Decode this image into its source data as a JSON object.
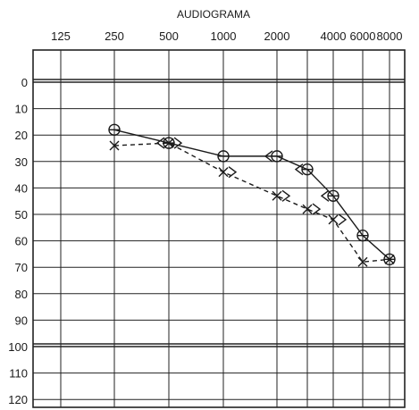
{
  "chart_data": {
    "type": "line",
    "title": "AUDIOGRAMA",
    "x": [
      125,
      250,
      500,
      1000,
      2000,
      4000,
      6000,
      8000
    ],
    "x_tick_labels": [
      "125",
      "250",
      "500",
      "1000",
      "2000",
      "4000",
      "6000",
      "8000"
    ],
    "y_tick_labels": [
      "0",
      "10",
      "20",
      "30",
      "40",
      "50",
      "60",
      "70",
      "80",
      "90",
      "100",
      "110",
      "120"
    ],
    "ylim": [
      -5,
      120
    ],
    "y_reversed": true,
    "grid": true,
    "series": [
      {
        "line_style": "solid",
        "air_marker": "O",
        "bone_marker": "<",
        "air": [
          [
            250,
            18
          ],
          [
            500,
            23
          ],
          [
            1000,
            28
          ],
          [
            2000,
            28
          ],
          [
            3000,
            33
          ],
          [
            4000,
            43
          ],
          [
            6000,
            58
          ],
          [
            8000,
            67
          ]
        ],
        "bone": [
          [
            500,
            23
          ],
          [
            2000,
            28
          ],
          [
            3000,
            33
          ],
          [
            4000,
            43
          ]
        ]
      },
      {
        "line_style": "dashed",
        "air_marker": "X",
        "bone_marker": ">",
        "air": [
          [
            250,
            24
          ],
          [
            500,
            23
          ],
          [
            1000,
            34
          ],
          [
            2000,
            43
          ],
          [
            3000,
            48
          ],
          [
            4000,
            52
          ],
          [
            6000,
            68
          ],
          [
            8000,
            67
          ]
        ],
        "bone": [
          [
            500,
            23
          ],
          [
            1000,
            34
          ],
          [
            2000,
            43
          ],
          [
            3000,
            48
          ],
          [
            4000,
            52
          ]
        ]
      }
    ]
  }
}
